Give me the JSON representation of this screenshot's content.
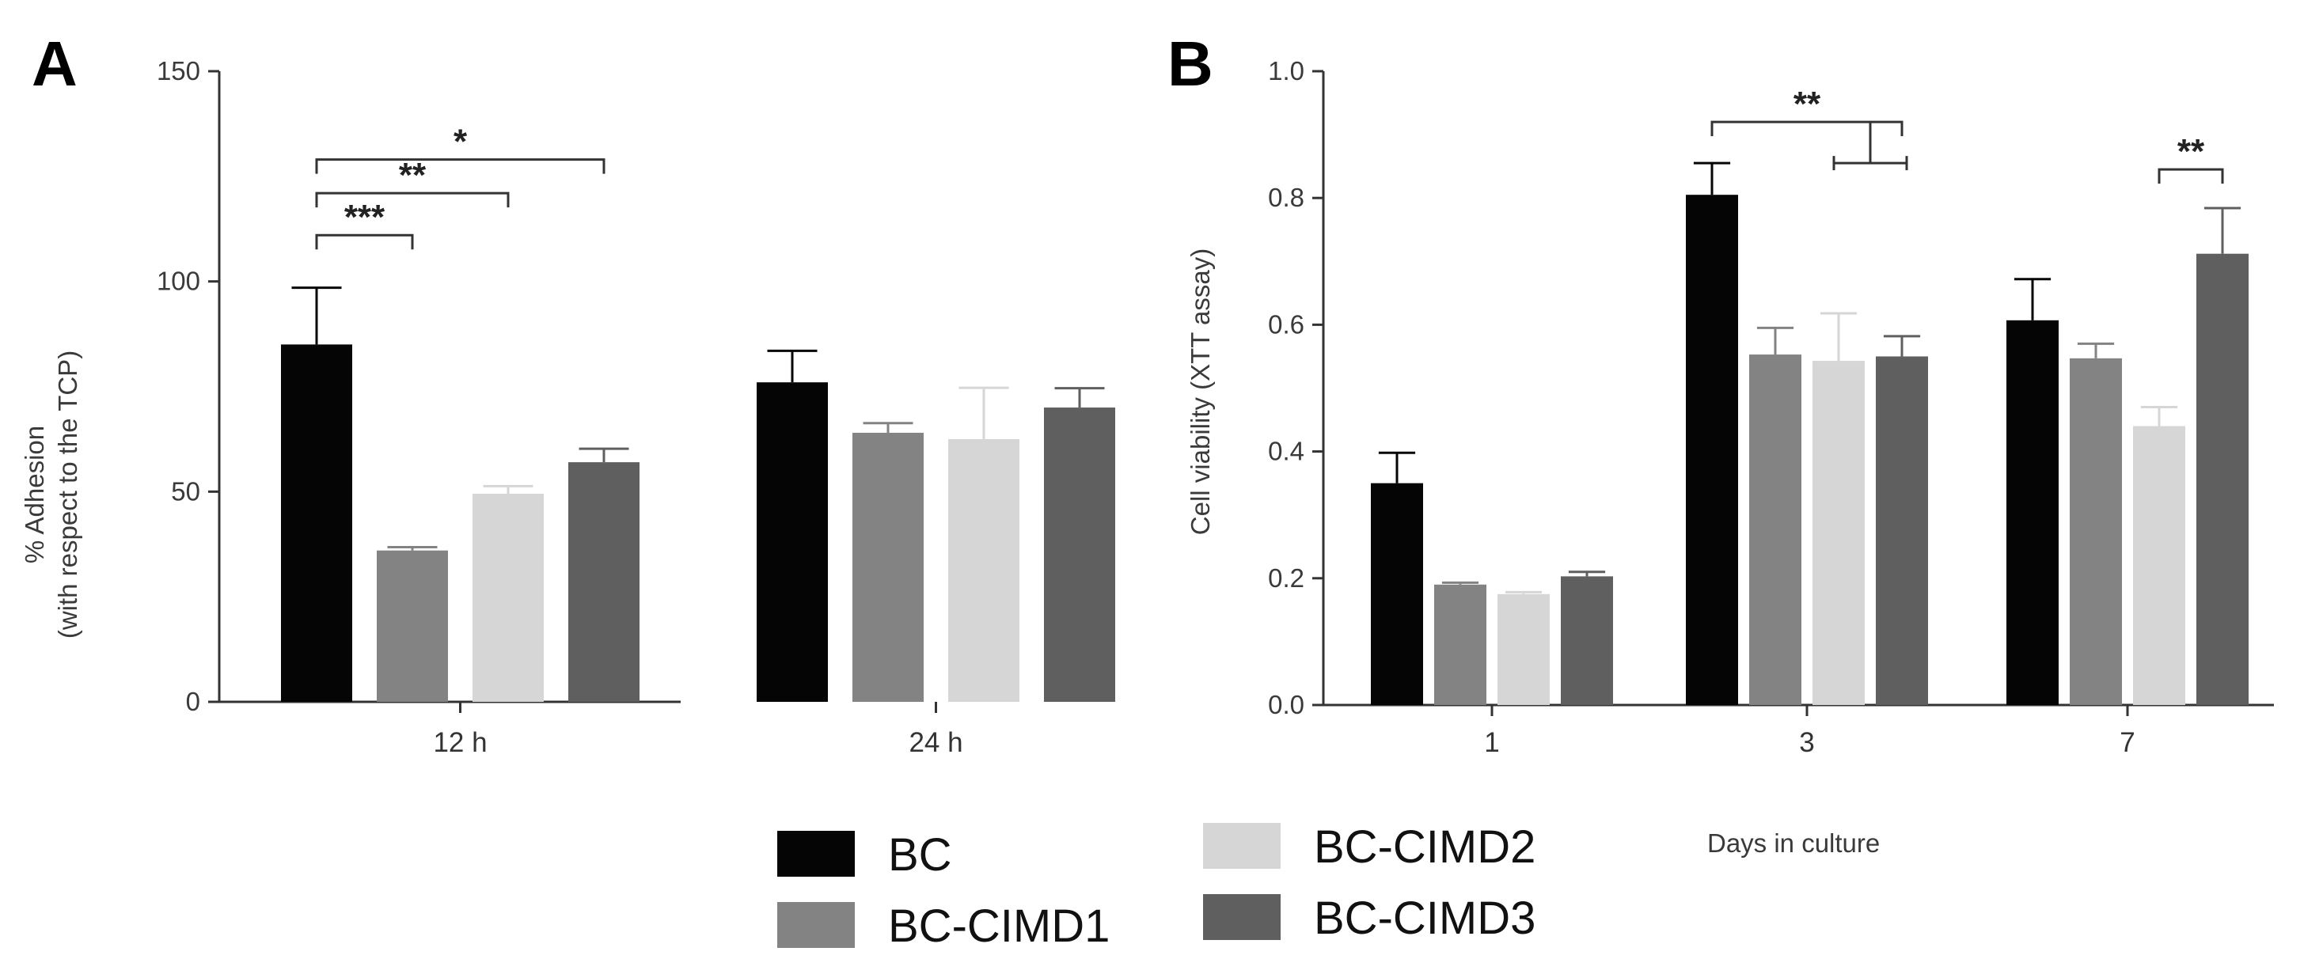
{
  "colors": {
    "BC": "#050505",
    "BC-CIMD1": "#838383",
    "BC-CIMD2": "#d6d6d6",
    "BC-CIMD3": "#5f5f5f",
    "axis": "#333333"
  },
  "legend": {
    "entries": [
      {
        "name": "BC",
        "label": "BC"
      },
      {
        "name": "BC-CIMD1",
        "label": "BC-CIMD1"
      },
      {
        "name": "BC-CIMD2",
        "label": "BC-CIMD2"
      },
      {
        "name": "BC-CIMD3",
        "label": "BC-CIMD3"
      }
    ]
  },
  "x_caption": "Days in culture",
  "chart_data": [
    {
      "panel": "A",
      "type": "bar",
      "title": "",
      "ylabel_line1": "% Adhesion",
      "ylabel_line2": "(with respect to the TCP)",
      "ylim": [
        0,
        150
      ],
      "yticks": [
        "0",
        "50",
        "100",
        "150"
      ],
      "ytick_values": [
        0,
        50,
        100,
        150
      ],
      "categories": [
        "12 h",
        "24 h"
      ],
      "series": [
        {
          "name": "BC",
          "values": [
            85,
            76
          ],
          "errors": [
            13.5,
            7.5
          ]
        },
        {
          "name": "BC-CIMD1",
          "values": [
            36,
            64
          ],
          "errors": [
            0.8,
            2.3
          ]
        },
        {
          "name": "BC-CIMD2",
          "values": [
            49.5,
            62.5
          ],
          "errors": [
            1.8,
            12.2
          ]
        },
        {
          "name": "BC-CIMD3",
          "values": [
            57,
            70
          ],
          "errors": [
            3.2,
            4.6
          ]
        }
      ],
      "significance": [
        {
          "label": "***",
          "category": 0,
          "from": "BC",
          "to": "BC-CIMD1",
          "level": 111
        },
        {
          "label": "**",
          "category": 0,
          "from": "BC",
          "to": "BC-CIMD2",
          "level": 121
        },
        {
          "label": "*",
          "category": 0,
          "from": "BC",
          "to": "BC-CIMD3",
          "level": 129
        }
      ]
    },
    {
      "panel": "B",
      "type": "bar",
      "title": "",
      "ylabel_line1": "Cell viability (XTT assay)",
      "ylabel_line2": "",
      "ylim": [
        0,
        1.0
      ],
      "yticks": [
        "0.0",
        "0.2",
        "0.4",
        "0.6",
        "0.8",
        "1.0"
      ],
      "ytick_values": [
        0,
        0.2,
        0.4,
        0.6,
        0.8,
        1.0
      ],
      "categories": [
        "1",
        "3",
        "7"
      ],
      "xlabel": "Days in culture",
      "series": [
        {
          "name": "BC",
          "values": [
            0.35,
            0.805,
            0.607
          ],
          "errors": [
            0.048,
            0.05,
            0.065
          ]
        },
        {
          "name": "BC-CIMD1",
          "values": [
            0.19,
            0.553,
            0.547
          ],
          "errors": [
            0.003,
            0.042,
            0.023
          ]
        },
        {
          "name": "BC-CIMD2",
          "values": [
            0.175,
            0.543,
            0.44
          ],
          "errors": [
            0.003,
            0.075,
            0.03
          ]
        },
        {
          "name": "BC-CIMD3",
          "values": [
            0.203,
            0.55,
            0.712
          ],
          "errors": [
            0.007,
            0.032,
            0.072
          ]
        }
      ],
      "significance": [
        {
          "label": "**",
          "category": 1,
          "from": "BC",
          "to": "BC-CIMD3",
          "level": 0.92,
          "nested": true,
          "inner_level": 0.855
        },
        {
          "label": "**",
          "category": 2,
          "from": "BC-CIMD2",
          "to": "BC-CIMD3",
          "level": 0.845
        }
      ]
    }
  ]
}
